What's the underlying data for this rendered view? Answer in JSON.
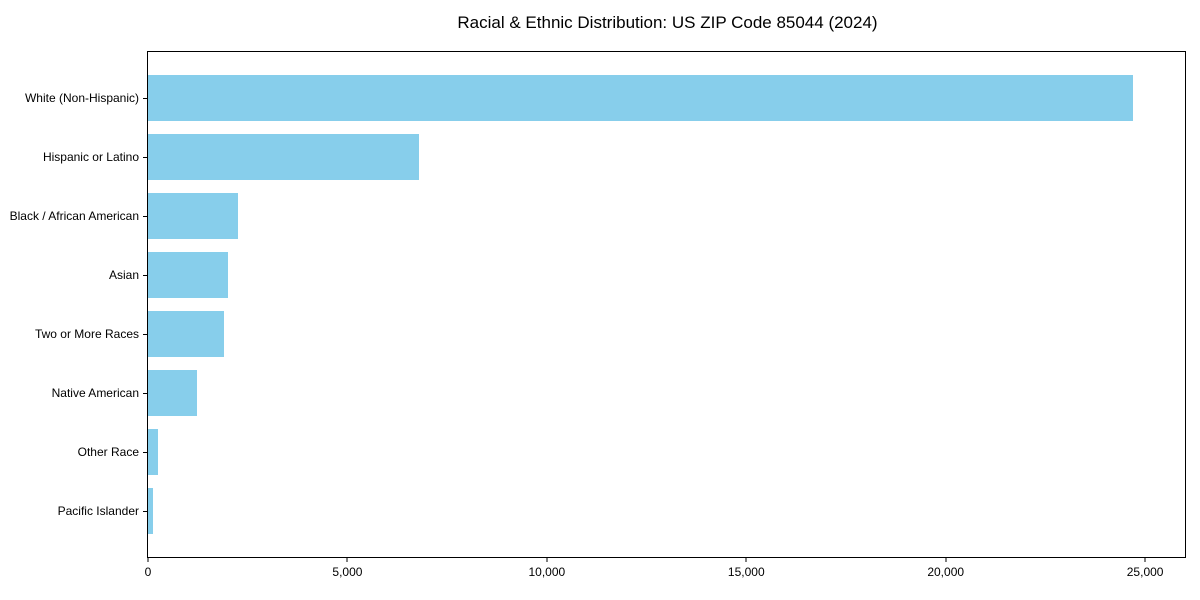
{
  "page": {
    "background": "#ffffff"
  },
  "chart_data": {
    "type": "bar",
    "orientation": "horizontal",
    "title": "Racial & Ethnic Distribution: US ZIP Code 85044 (2024)",
    "categories": [
      "White (Non-Hispanic)",
      "Hispanic or Latino",
      "Black / African American",
      "Asian",
      "Two or More Races",
      "Native American",
      "Other Race",
      "Pacific Islander"
    ],
    "values": [
      24700,
      6800,
      2250,
      2000,
      1900,
      1225,
      250,
      125
    ],
    "xlabel": "",
    "ylabel": "",
    "xlim": [
      0,
      26000
    ],
    "x_ticks": [
      0,
      5000,
      10000,
      15000,
      20000,
      25000
    ],
    "x_tick_labels": [
      "0",
      "5,000",
      "10,000",
      "15,000",
      "20,000",
      "25,000"
    ],
    "bar_color": "#87CEEB",
    "axis_color": "#000000",
    "grid": false,
    "legend": null
  }
}
